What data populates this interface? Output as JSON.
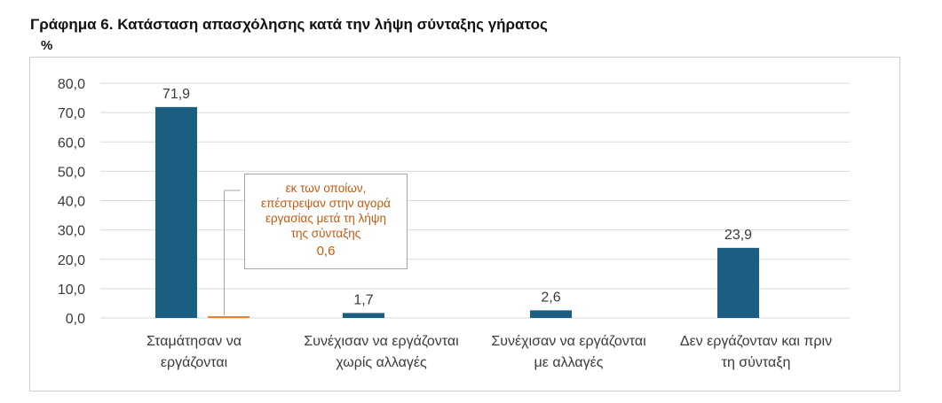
{
  "title": "Γράφημα 6. Κατάσταση απασχόλησης κατά την λήψη σύνταξης γήρατος",
  "unit": "%",
  "chart_data": {
    "type": "bar",
    "categories": [
      [
        "Σταμάτησαν να",
        "εργάζονται"
      ],
      [
        "Συνέχισαν να εργάζονται",
        "χωρίς αλλαγές"
      ],
      [
        "Συνέχισαν να εργάζονται",
        "με αλλαγές"
      ],
      [
        "Δεν εργάζονταν και πριν",
        "τη σύνταξη"
      ]
    ],
    "values": [
      71.9,
      1.7,
      2.6,
      23.9
    ],
    "value_labels": [
      "71,9",
      "1,7",
      "2,6",
      "23,9"
    ],
    "sub_bar": {
      "category_index": 0,
      "value": 0.6
    },
    "ylim": [
      0,
      80
    ],
    "yticks": [
      "0,0",
      "10,0",
      "20,0",
      "30,0",
      "40,0",
      "50,0",
      "60,0",
      "70,0",
      "80,0"
    ],
    "grid": true,
    "colors": {
      "bar": "#1a5e82",
      "sub_bar": "#ed7d31",
      "callout_text": "#c55a11",
      "grid": "#d9d9d9"
    },
    "annotation": {
      "lines": [
        "εκ των οποίων,",
        "επέστρεψαν στην αγορά",
        "εργασίας μετά τη λήψη",
        "της σύνταξης"
      ],
      "value": "0,6"
    }
  }
}
